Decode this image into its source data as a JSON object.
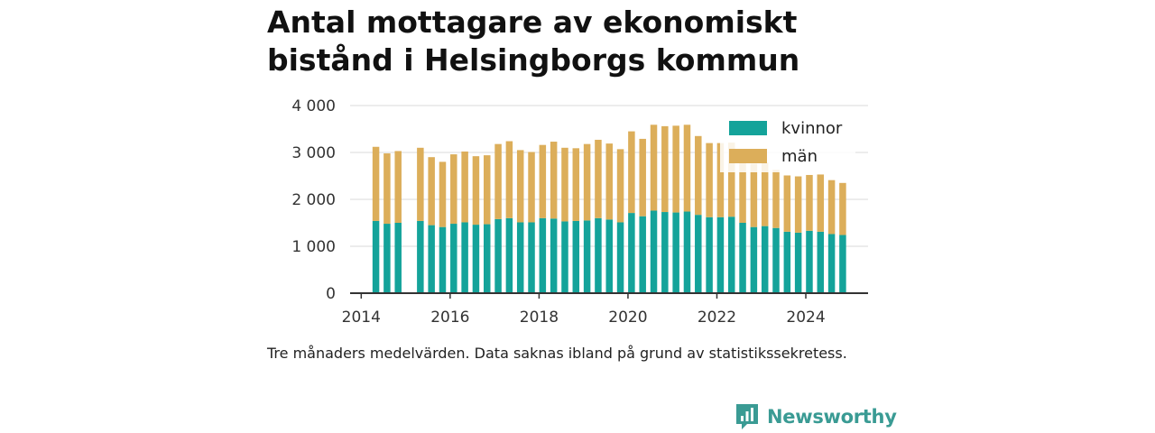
{
  "title": "Antal mottagare av ekonomiskt bistånd i Helsingborgs kommun",
  "footnote": "Tre månaders medelvärden. Data saknas ibland på grund av statistikssekretess.",
  "brand": {
    "name": "Newsworthy",
    "icon": "newsworthy-logo-icon"
  },
  "colors": {
    "kvinnor": "#14a39a",
    "man": "#dcae5a",
    "grid": "#d9d9d9",
    "axis": "#333333"
  },
  "chart_data": {
    "type": "bar",
    "stacked": true,
    "title": "Antal mottagare av ekonomiskt bistånd i Helsingborgs kommun",
    "xlabel": "",
    "ylabel": "",
    "xlim": [
      2013.75,
      2025.4
    ],
    "ylim": [
      0,
      4000
    ],
    "grid": true,
    "legend_position": "top-right",
    "x_ticks": [
      2014,
      2016,
      2018,
      2020,
      2022,
      2024
    ],
    "x_tick_labels": [
      "2014",
      "2016",
      "2018",
      "2020",
      "2022",
      "2024"
    ],
    "y_ticks": [
      0,
      1000,
      2000,
      3000,
      4000
    ],
    "y_tick_labels": [
      "0",
      "1 000",
      "2 000",
      "3 000",
      "4 000"
    ],
    "x": [
      2014.33,
      2014.58,
      2014.83,
      2015.33,
      2015.58,
      2015.83,
      2016.08,
      2016.33,
      2016.58,
      2016.83,
      2017.08,
      2017.33,
      2017.58,
      2017.83,
      2018.08,
      2018.33,
      2018.58,
      2018.83,
      2019.08,
      2019.33,
      2019.58,
      2019.83,
      2020.08,
      2020.33,
      2020.58,
      2020.83,
      2021.08,
      2021.33,
      2021.58,
      2021.83,
      2022.08,
      2022.33,
      2022.58,
      2022.83,
      2023.08,
      2023.33,
      2023.58,
      2023.83,
      2024.08,
      2024.33,
      2024.58,
      2024.83
    ],
    "series": [
      {
        "name": "kvinnor",
        "values": [
          1540,
          1480,
          1500,
          1540,
          1450,
          1410,
          1480,
          1510,
          1460,
          1470,
          1580,
          1600,
          1510,
          1510,
          1600,
          1590,
          1530,
          1540,
          1550,
          1600,
          1570,
          1510,
          1710,
          1640,
          1760,
          1730,
          1720,
          1740,
          1670,
          1620,
          1620,
          1630,
          1500,
          1410,
          1430,
          1390,
          1310,
          1290,
          1330,
          1310,
          1260,
          1240
        ]
      },
      {
        "name": "män",
        "values": [
          1580,
          1500,
          1530,
          1560,
          1450,
          1390,
          1480,
          1510,
          1460,
          1470,
          1600,
          1640,
          1540,
          1500,
          1560,
          1640,
          1570,
          1550,
          1630,
          1670,
          1620,
          1560,
          1740,
          1650,
          1830,
          1830,
          1850,
          1850,
          1680,
          1580,
          1580,
          1580,
          1430,
          1350,
          1350,
          1240,
          1200,
          1200,
          1190,
          1220,
          1150,
          1110
        ]
      }
    ]
  }
}
